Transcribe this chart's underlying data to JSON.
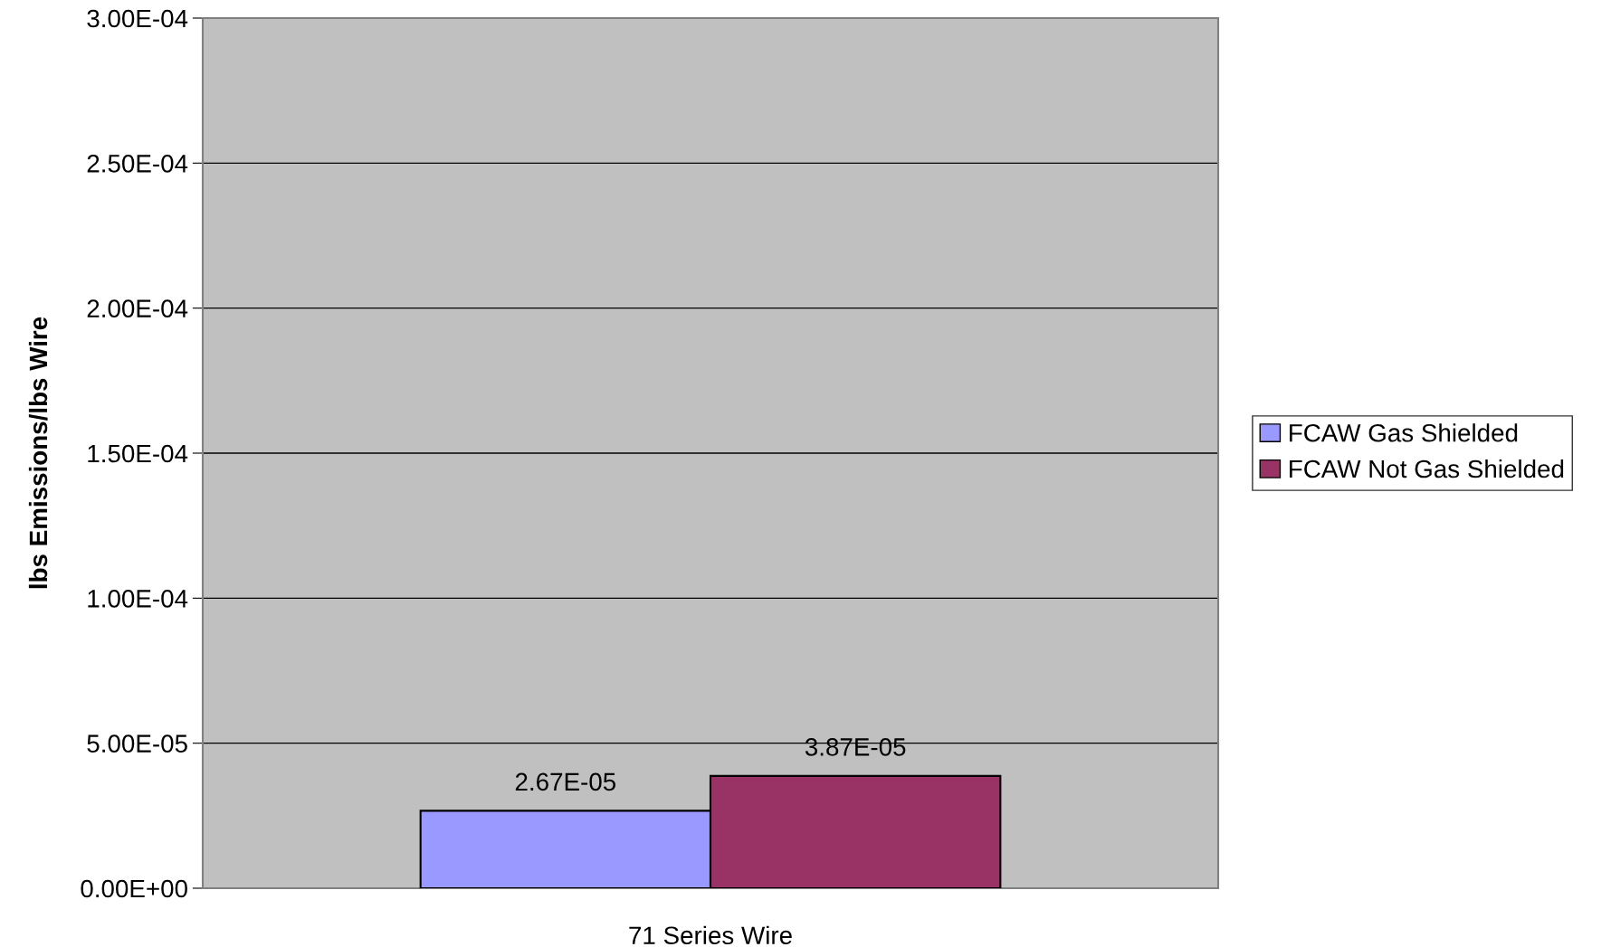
{
  "chart_data": {
    "type": "bar",
    "ylabel": "lbs Emissions/lbs Wire",
    "categories": [
      "71 Series Wire"
    ],
    "series": [
      {
        "name": "FCAW Gas Shielded",
        "color": "#9999ff",
        "values": [
          2.67e-05
        ],
        "value_labels": [
          "2.67E-05"
        ]
      },
      {
        "name": "FCAW Not Gas Shielded",
        "color": "#993366",
        "values": [
          3.87e-05
        ],
        "value_labels": [
          "3.87E-05"
        ]
      }
    ],
    "ylim": [
      0,
      0.0003
    ],
    "yticks": [
      {
        "value": 0,
        "label": "0.00E+00"
      },
      {
        "value": 5e-05,
        "label": "5.00E-05"
      },
      {
        "value": 0.0001,
        "label": "1.00E-04"
      },
      {
        "value": 0.00015,
        "label": "1.50E-04"
      },
      {
        "value": 0.0002,
        "label": "2.00E-04"
      },
      {
        "value": 0.00025,
        "label": "2.50E-04"
      },
      {
        "value": 0.0003,
        "label": "3.00E-04"
      }
    ],
    "grid": "y",
    "legend": "right"
  }
}
